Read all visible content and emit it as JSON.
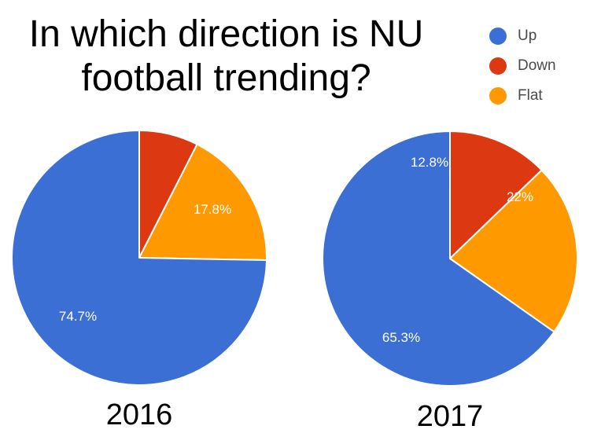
{
  "title_lines": [
    "In which direction is NU",
    "football trending?"
  ],
  "legend": [
    {
      "label": "Up",
      "color": "#3b6fd4"
    },
    {
      "label": "Down",
      "color": "#dc3912"
    },
    {
      "label": "Flat",
      "color": "#ff9900"
    }
  ],
  "chart_data": [
    {
      "type": "pie",
      "label": "2016",
      "categories": [
        "Up",
        "Down",
        "Flat"
      ],
      "values": [
        74.7,
        7.5,
        17.8
      ],
      "slice_labels": [
        "74.7%",
        "",
        "17.8%"
      ],
      "colors": [
        "#3b6fd4",
        "#dc3912",
        "#ff9900"
      ],
      "start_angle": "12 o'clock, clockwise, Down first"
    },
    {
      "type": "pie",
      "label": "2017",
      "categories": [
        "Up",
        "Down",
        "Flat"
      ],
      "values": [
        65.3,
        12.8,
        22
      ],
      "slice_labels": [
        "65.3%",
        "12.8%",
        "22%"
      ],
      "colors": [
        "#3b6fd4",
        "#dc3912",
        "#ff9900"
      ],
      "start_angle": "12 o'clock, clockwise, Down first"
    }
  ]
}
